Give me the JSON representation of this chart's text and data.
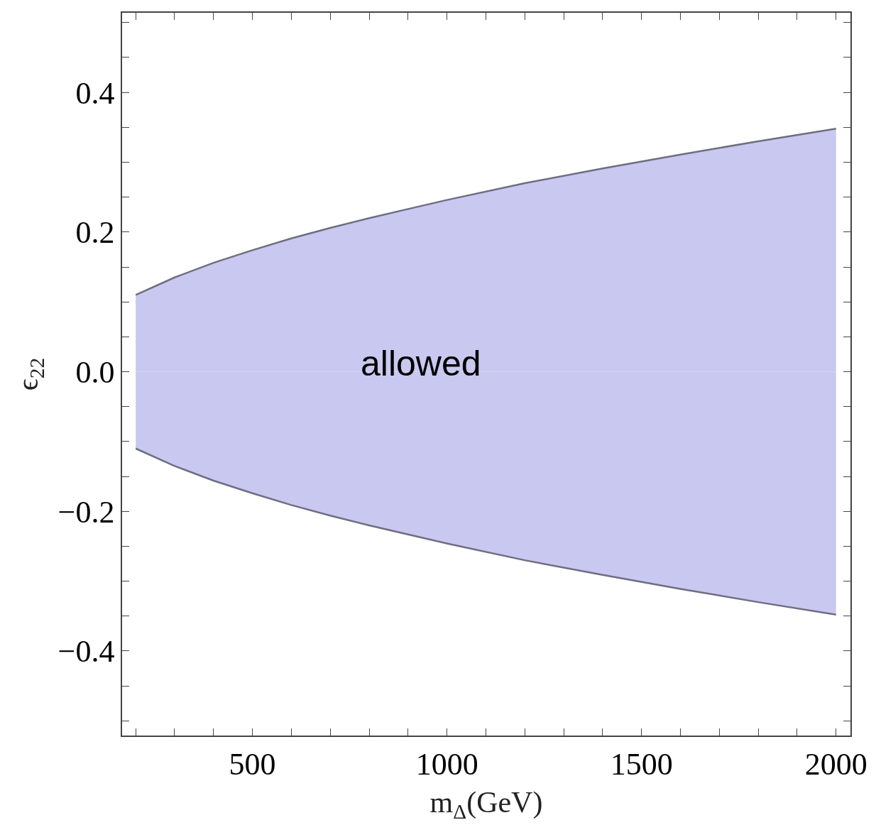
{
  "chart_data": {
    "type": "area",
    "xlabel": "m$_{Δ}$(GeV)",
    "ylabel": "ϵ$_{22}$",
    "x": [
      200,
      300,
      400,
      500,
      600,
      700,
      800,
      900,
      1000,
      1200,
      1400,
      1600,
      1800,
      2000
    ],
    "series": [
      {
        "color": "#c8c8f0",
        "values": [
          0.11,
          0.135,
          0.156,
          0.174,
          0.191,
          0.206,
          0.22,
          0.233,
          0.246,
          0.27,
          0.291,
          0.311,
          0.33,
          0.348
        ]
      },
      {
        "color": "#c8c8f0",
        "values": [
          -0.11,
          -0.135,
          -0.156,
          -0.174,
          -0.191,
          -0.206,
          -0.22,
          -0.233,
          -0.246,
          -0.27,
          -0.291,
          -0.311,
          -0.33,
          -0.348
        ]
      }
    ],
    "xlim": [
      165,
      2037
    ],
    "ylim": [
      -0.521,
      0.514
    ],
    "xticks": [
      {
        "value": 200,
        "label": null
      },
      {
        "value": 300,
        "label": null
      },
      {
        "value": 400,
        "label": null
      },
      500,
      {
        "value": 600,
        "label": null
      },
      {
        "value": 700,
        "label": null
      },
      {
        "value": 800,
        "label": null
      },
      {
        "value": 900,
        "label": null
      },
      1000,
      {
        "value": 1100,
        "label": null
      },
      {
        "value": 1200,
        "label": null
      },
      {
        "value": 1300,
        "label": null
      },
      {
        "value": 1400,
        "label": null
      },
      1500,
      {
        "value": 1600,
        "label": null
      },
      {
        "value": 1700,
        "label": null
      },
      {
        "value": 1800,
        "label": null
      },
      {
        "value": 1900,
        "label": null
      },
      2000
    ],
    "yticks": [
      {
        "value": -0.5,
        "label": null
      },
      {
        "value": -0.45,
        "label": null
      },
      {
        "value": -0.4,
        "label": "−0.4"
      },
      {
        "value": -0.35,
        "label": null
      },
      {
        "value": -0.3,
        "label": null
      },
      {
        "value": -0.25,
        "label": null
      },
      {
        "value": -0.2,
        "label": "−0.2"
      },
      {
        "value": -0.15,
        "label": null
      },
      {
        "value": -0.1,
        "label": null
      },
      {
        "value": -0.05,
        "label": null
      },
      {
        "value": 0,
        "label": "0.0"
      },
      {
        "value": 0.05,
        "label": null
      },
      {
        "value": 0.1,
        "label": null
      },
      {
        "value": 0.15,
        "label": null
      },
      {
        "value": 0.2,
        "label": "0.2"
      },
      {
        "value": 0.25,
        "label": null
      },
      {
        "value": 0.3,
        "label": null
      },
      {
        "value": 0.35,
        "label": null
      },
      {
        "value": 0.4,
        "label": "0.4"
      },
      {
        "value": 0.45,
        "label": null
      },
      {
        "value": 0.5,
        "label": null
      }
    ],
    "annotations": [
      "allowed"
    ]
  }
}
